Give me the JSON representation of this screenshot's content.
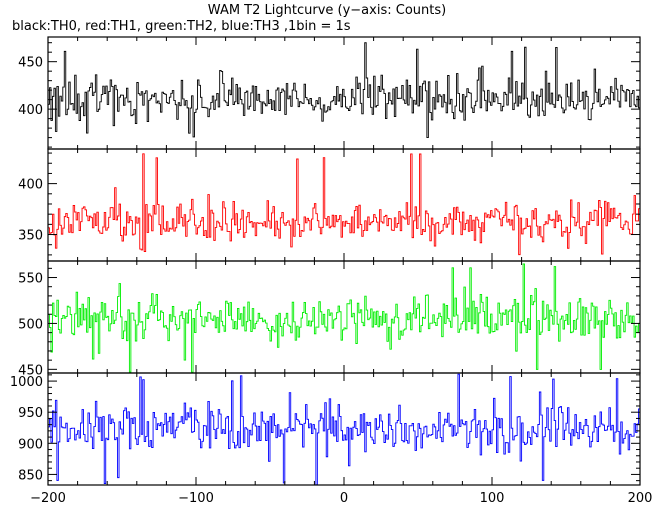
{
  "chart_data": {
    "type": "line",
    "title": "WAM T2 Lightcurve (y−axis: Counts)",
    "subtitle": "black:TH0, red:TH1, green:TH2, blue:TH3 ,1bin = 1s",
    "xlim": [
      -200,
      200
    ],
    "x_ticks": [
      -200,
      -100,
      0,
      100,
      200
    ],
    "x_tick_labels": [
      "−200",
      "−100",
      "0",
      "100",
      "200"
    ],
    "bin_seconds": 1,
    "grid": false,
    "panels": [
      {
        "series": "TH0",
        "color": "#000000",
        "ylim": [
          358,
          476
        ],
        "y_ticks": [
          400,
          450
        ],
        "mean": 410,
        "spread": 19,
        "rare_low": 346,
        "rare_high": 470
      },
      {
        "series": "TH1",
        "color": "#ff0000",
        "ylim": [
          324,
          434
        ],
        "y_ticks": [
          350,
          400
        ],
        "mean": 362,
        "spread": 16,
        "rare_low": 330,
        "rare_high": 432
      },
      {
        "series": "TH2",
        "color": "#00ee00",
        "ylim": [
          446,
          568
        ],
        "y_ticks": [
          450,
          500,
          550
        ],
        "mean": 505,
        "spread": 21,
        "rare_low": 446,
        "rare_high": 566
      },
      {
        "series": "TH3",
        "color": "#0000ff",
        "ylim": [
          833,
          1013
        ],
        "y_ticks": [
          850,
          900,
          950,
          1000
        ],
        "mean": 922,
        "spread": 30,
        "rare_low": 833,
        "rare_high": 1012
      }
    ]
  }
}
